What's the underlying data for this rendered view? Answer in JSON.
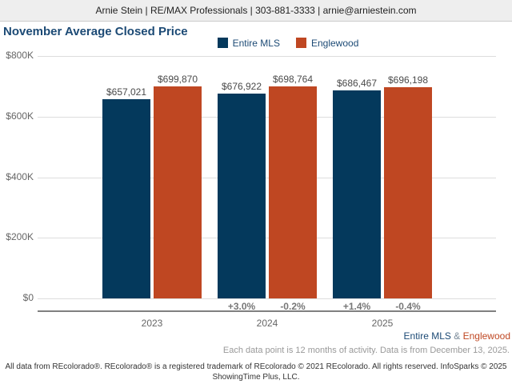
{
  "header": {
    "contact_line": "Arnie Stein | RE/MAX Professionals | 303-881-3333 | arnie@arniestein.com"
  },
  "title": "November Average Closed Price",
  "colors": {
    "entire_mls": "#04395c",
    "englewood": "#bf4722",
    "title_navy": "#1c4a75"
  },
  "chart_data": {
    "type": "bar",
    "title": "November Average Closed Price",
    "categories": [
      "2023",
      "2024",
      "2025"
    ],
    "series": [
      {
        "name": "Entire MLS",
        "color": "#04395c",
        "values": [
          657021,
          676922,
          686467
        ],
        "labels": [
          "$657,021",
          "$676,922",
          "$686,467"
        ],
        "pct_change": [
          "",
          "+3.0%",
          "+1.4%"
        ]
      },
      {
        "name": "Englewood",
        "color": "#bf4722",
        "values": [
          699870,
          698764,
          696198
        ],
        "labels": [
          "$699,870",
          "$698,764",
          "$696,198"
        ],
        "pct_change": [
          "",
          "-0.2%",
          "-0.4%"
        ]
      }
    ],
    "ylim": [
      0,
      800000
    ],
    "yticks": [
      {
        "value": 800000,
        "label": "$800K"
      },
      {
        "value": 600000,
        "label": "$600K"
      },
      {
        "value": 400000,
        "label": "$400K"
      },
      {
        "value": 200000,
        "label": "$200K"
      },
      {
        "value": 0,
        "label": "$0"
      }
    ],
    "legend_position": "top-center",
    "grid": true
  },
  "footnotes": {
    "series_note": {
      "primary": "Entire MLS",
      "separator": "&",
      "secondary": "Englewood"
    },
    "data_note": "Each data point is 12 months of activity. Data is from December 13, 2025.",
    "disclaimer_line1": "All data from REcolorado®. REcolorado® is a registered trademark of REcolorado © 2021 REcolorado. All rights reserved. InfoSparks © 2025",
    "disclaimer_line2": "ShowingTime Plus, LLC."
  }
}
